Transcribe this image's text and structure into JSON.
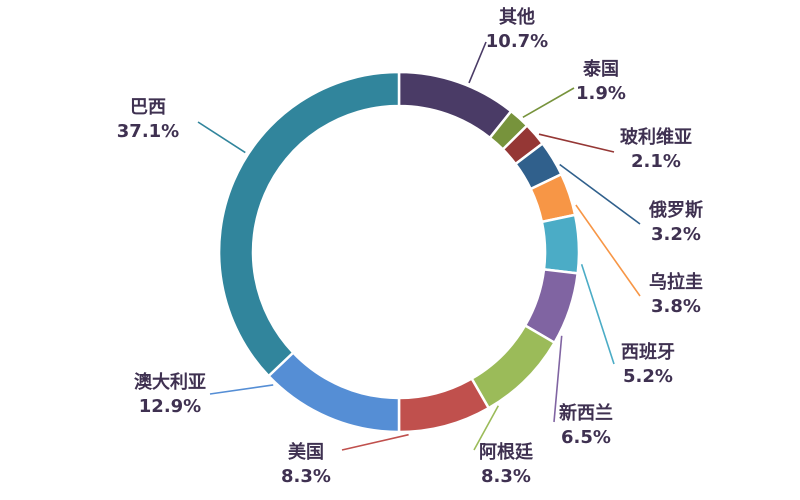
{
  "chart_data": {
    "type": "pie",
    "subtype": "donut",
    "title": "",
    "unit": "%",
    "direction": "clockwise",
    "start_angle_deg": 0,
    "legend": "none",
    "label_style": "category-name-and-percentage-with-leader-lines",
    "label_text_color": "#3F3151",
    "background_color": "#FFFFFF",
    "slices": [
      {
        "label": "其他",
        "value": 10.7,
        "display": "10.7%",
        "color": "#4A3B66"
      },
      {
        "label": "泰国",
        "value": 1.9,
        "display": "1.9%",
        "color": "#77933C"
      },
      {
        "label": "玻利维亚",
        "value": 2.1,
        "display": "2.1%",
        "color": "#953735"
      },
      {
        "label": "俄罗斯",
        "value": 3.2,
        "display": "3.2%",
        "color": "#30608C"
      },
      {
        "label": "乌拉圭",
        "value": 3.8,
        "display": "3.8%",
        "color": "#F79646"
      },
      {
        "label": "西班牙",
        "value": 5.2,
        "display": "5.2%",
        "color": "#4BACC6"
      },
      {
        "label": "新西兰",
        "value": 6.5,
        "display": "6.5%",
        "color": "#8064A2"
      },
      {
        "label": "阿根廷",
        "value": 8.3,
        "display": "8.3%",
        "color": "#9BBB59"
      },
      {
        "label": "美国",
        "value": 8.3,
        "display": "8.3%",
        "color": "#C0504D"
      },
      {
        "label": "澳大利亚",
        "value": 12.9,
        "display": "12.9%",
        "color": "#558ED5"
      },
      {
        "label": "巴西",
        "value": 37.1,
        "display": "37.1%",
        "color": "#31859C"
      }
    ]
  }
}
